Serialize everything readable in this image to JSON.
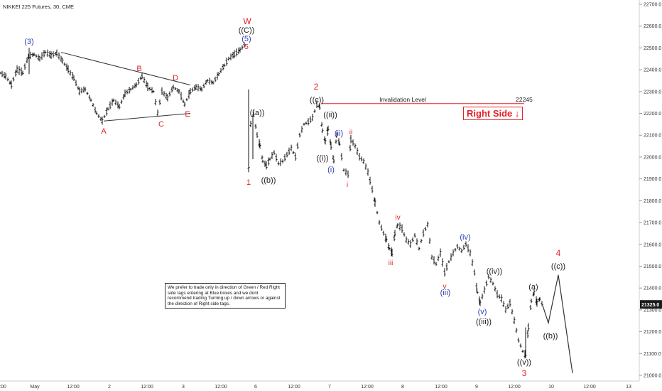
{
  "title": "NIKKEI 225 Futures, 30, CME",
  "chart_data": {
    "type": "candlestick",
    "ylim": [
      21000,
      22700
    ],
    "y_ticks": [
      "22700.0",
      "22600.0",
      "22500.0",
      "22400.0",
      "22300.0",
      "22200.0",
      "22100.0",
      "22000.0",
      "21900.0",
      "21800.0",
      "21700.0",
      "21600.0",
      "21500.0",
      "21400.0",
      "21300.0",
      "21200.0",
      "21100.0",
      "21000.0"
    ],
    "last_price_label": "21325.0",
    "last_price": 21325,
    "x_ticks": [
      ":00",
      "May",
      "12:00",
      "2",
      "12:00",
      "3",
      "12:00",
      "6",
      "12:00",
      "7",
      "12:00",
      "8",
      "12:00",
      "9",
      "12:00",
      "10",
      "12:00",
      "13"
    ],
    "price_path": [
      [
        0,
        22385
      ],
      [
        8,
        22370
      ],
      [
        16,
        22330
      ],
      [
        24,
        22400
      ],
      [
        32,
        22385
      ],
      [
        40,
        22460
      ],
      [
        48,
        22470
      ],
      [
        56,
        22450
      ],
      [
        64,
        22480
      ],
      [
        72,
        22465
      ],
      [
        80,
        22475
      ],
      [
        88,
        22440
      ],
      [
        96,
        22400
      ],
      [
        104,
        22360
      ],
      [
        112,
        22300
      ],
      [
        120,
        22310
      ],
      [
        128,
        22260
      ],
      [
        136,
        22200
      ],
      [
        144,
        22165
      ],
      [
        152,
        22220
      ],
      [
        160,
        22260
      ],
      [
        168,
        22230
      ],
      [
        176,
        22290
      ],
      [
        184,
        22310
      ],
      [
        192,
        22330
      ],
      [
        200,
        22370
      ],
      [
        208,
        22320
      ],
      [
        216,
        22300
      ],
      [
        222,
        22200
      ],
      [
        228,
        22300
      ],
      [
        236,
        22270
      ],
      [
        244,
        22320
      ],
      [
        252,
        22300
      ],
      [
        260,
        22240
      ],
      [
        268,
        22300
      ],
      [
        276,
        22320
      ],
      [
        284,
        22310
      ],
      [
        292,
        22350
      ],
      [
        300,
        22340
      ],
      [
        308,
        22380
      ],
      [
        316,
        22420
      ],
      [
        322,
        22450
      ],
      [
        330,
        22470
      ],
      [
        338,
        22490
      ],
      [
        346,
        22520
      ]
    ],
    "path2": [
      [
        350,
        21950
      ],
      [
        353,
        22150
      ],
      [
        357,
        22200
      ],
      [
        362,
        22100
      ],
      [
        366,
        22050
      ],
      [
        370,
        21980
      ],
      [
        375,
        21960
      ],
      [
        380,
        21990
      ],
      [
        386,
        22020
      ],
      [
        392,
        21970
      ],
      [
        398,
        21980
      ],
      [
        404,
        22010
      ],
      [
        410,
        22040
      ],
      [
        416,
        22000
      ],
      [
        422,
        22100
      ],
      [
        428,
        22150
      ],
      [
        434,
        22160
      ],
      [
        440,
        22180
      ],
      [
        446,
        22240
      ],
      [
        450,
        22230
      ],
      [
        454,
        22120
      ],
      [
        458,
        22070
      ],
      [
        462,
        22130
      ],
      [
        466,
        22050
      ],
      [
        470,
        21980
      ],
      [
        474,
        22100
      ],
      [
        478,
        22060
      ],
      [
        484,
        21940
      ],
      [
        490,
        21920
      ],
      [
        494,
        22080
      ],
      [
        500,
        22050
      ],
      [
        506,
        22000
      ],
      [
        512,
        21980
      ],
      [
        518,
        21930
      ],
      [
        524,
        21850
      ],
      [
        528,
        21790
      ],
      [
        534,
        21700
      ],
      [
        540,
        21650
      ],
      [
        544,
        21620
      ],
      [
        548,
        21580
      ],
      [
        552,
        21560
      ],
      [
        556,
        21650
      ],
      [
        560,
        21690
      ],
      [
        566,
        21670
      ],
      [
        572,
        21620
      ],
      [
        578,
        21600
      ],
      [
        584,
        21640
      ],
      [
        590,
        21580
      ],
      [
        596,
        21650
      ],
      [
        602,
        21690
      ],
      [
        608,
        21540
      ],
      [
        614,
        21510
      ],
      [
        620,
        21560
      ],
      [
        626,
        21470
      ],
      [
        632,
        21520
      ],
      [
        638,
        21560
      ],
      [
        644,
        21590
      ],
      [
        650,
        21570
      ],
      [
        656,
        21600
      ],
      [
        662,
        21560
      ],
      [
        668,
        21470
      ],
      [
        672,
        21380
      ],
      [
        676,
        21330
      ],
      [
        682,
        21390
      ],
      [
        688,
        21450
      ],
      [
        694,
        21420
      ],
      [
        700,
        21370
      ],
      [
        706,
        21350
      ],
      [
        712,
        21300
      ],
      [
        718,
        21330
      ],
      [
        724,
        21250
      ],
      [
        730,
        21160
      ],
      [
        736,
        21110
      ],
      [
        740,
        21090
      ],
      [
        744,
        21220
      ],
      [
        748,
        21340
      ],
      [
        752,
        21380
      ],
      [
        756,
        21330
      ],
      [
        760,
        21350
      ],
      [
        764,
        21320
      ]
    ],
    "projection": [
      [
        764,
        21320
      ],
      [
        772,
        21240
      ],
      [
        786,
        21460
      ],
      [
        806,
        21010
      ]
    ],
    "lines": {
      "triangle_upper": [
        [
          86,
          22480
        ],
        [
          268,
          22330
        ]
      ],
      "triangle_lower": [
        [
          146,
          22165
        ],
        [
          268,
          22200
        ]
      ],
      "invalidation": [
        [
          452,
          22245
        ],
        [
          738,
          22245
        ]
      ]
    },
    "labels": {
      "w3": "(3)",
      "wA": "A",
      "wB": "B",
      "wC": "C",
      "wD": "D",
      "wE": "E",
      "wW": "W",
      "wCc": "((C))",
      "w5": "(5)",
      "w5r": "5",
      "w1": "1",
      "wa": "((a))",
      "wb": "((b))",
      "w2": "2",
      "wc": "((c))",
      "wii": "((ii))",
      "wi": "((i))",
      "wii_b": "(ii)",
      "wi_b": "(i)",
      "wi_r": "i",
      "wii_r": "ii",
      "wiii_r": "iii",
      "wiv_r": "iv",
      "wv_r": "v",
      "wiii_b": "(iii)",
      "wiv_b": "(iv)",
      "wv_b": "(v)",
      "wiv": "((iv))",
      "wiii": "((iii))",
      "wv": "((v))",
      "w3r": "3",
      "wa2": "(a)",
      "wb2": "((b))",
      "wc2": "((c))",
      "w4": "4",
      "invalidation_text": "Invalidation Level",
      "invalidation_value": "22245"
    },
    "colors": {
      "red": "#e0232a",
      "blue": "#2b3fb5",
      "black": "#222222",
      "candle": "#111111"
    }
  },
  "note_text": "We prefer to trade only in direction of Green / Red Right side tags entering at Blue boxes and we dont recommend trading Turning up / down arrows or against the direction of Right side tags.",
  "right_side_tag": "Right Side ↓"
}
